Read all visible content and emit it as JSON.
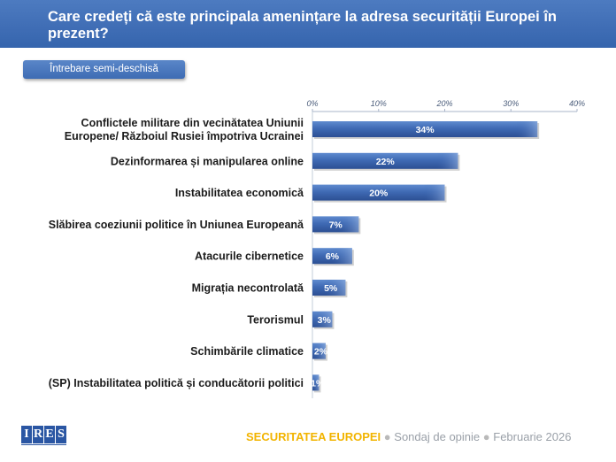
{
  "header": {
    "title_line1": "Care credeți că este principala amenințare  la adresa securității Europei în",
    "title_line2": "prezent?"
  },
  "tag": {
    "label": "Întrebare semi-deschisă"
  },
  "chart_data": {
    "type": "bar",
    "orientation": "horizontal",
    "categories": [
      [
        "Conflictele militare din vecinătatea Uniunii",
        "Europene/ Războiul Rusiei împotriva Ucrainei"
      ],
      [
        "Dezinformarea și manipularea online"
      ],
      [
        "Instabilitatea economică"
      ],
      [
        "Slăbirea coeziunii politice în Uniunea Europeană"
      ],
      [
        "Atacurile cibernetice"
      ],
      [
        "Migrația necontrolată"
      ],
      [
        "Terorismul"
      ],
      [
        "Schimbările climatice"
      ],
      [
        "(SP) Instabilitatea politică și conducătorii politici"
      ]
    ],
    "values": [
      34,
      22,
      20,
      7,
      6,
      5,
      3,
      2,
      1
    ],
    "value_labels": [
      "34%",
      "22%",
      "20%",
      "7%",
      "6%",
      "5%",
      "3%",
      "2%",
      "1%"
    ],
    "xticks": [
      "0%",
      "10%",
      "20%",
      "30%",
      "40%"
    ],
    "xlim": [
      0,
      40
    ],
    "bar_color": "#3f6ab4",
    "grid": false
  },
  "footer": {
    "topic": "SECURITATEA EUROPEI",
    "separator": "●",
    "survey": "Sondaj de opinie",
    "date": "Februarie 2026"
  },
  "logo": {
    "letters": [
      "I",
      "R",
      "E",
      "S"
    ]
  }
}
